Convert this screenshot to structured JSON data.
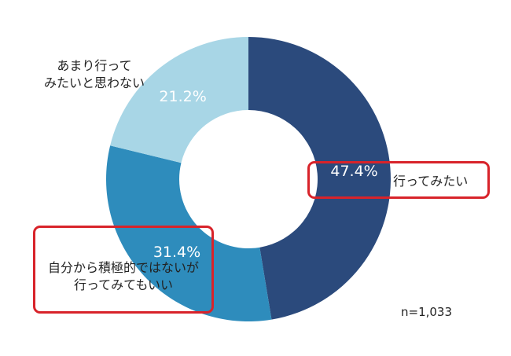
{
  "chart_data": {
    "type": "pie",
    "donut": true,
    "slices": [
      {
        "value": 47.4,
        "label": "47.4%",
        "category": [
          "行ってみたい"
        ],
        "color": "#2b4a7c"
      },
      {
        "value": 31.4,
        "label": "31.4%",
        "category": [
          "自分から積極的ではないが",
          "行ってみてもいい"
        ],
        "color": "#2e8cbc"
      },
      {
        "value": 21.2,
        "label": "21.2%",
        "category": [
          "あまり行って",
          "みたいと思わない"
        ],
        "color": "#a8d6e6"
      }
    ],
    "note": "n=1,033",
    "highlight_color": "#d8232a"
  }
}
